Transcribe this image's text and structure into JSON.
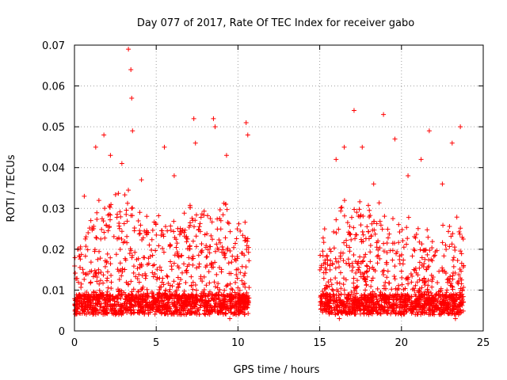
{
  "chart_data": {
    "type": "scatter",
    "title": "Day 077 of 2017, Rate Of TEC Index for receiver gabo",
    "xlabel": "GPS time / hours",
    "ylabel": "ROTI / TECUs",
    "xlim": [
      0,
      25
    ],
    "ylim": [
      0,
      0.07
    ],
    "xticks": [
      "0",
      "5",
      "10",
      "15",
      "20",
      "25"
    ],
    "yticks": [
      "0",
      "0.01",
      "0.02",
      "0.03",
      "0.04",
      "0.05",
      "0.06",
      "0.07"
    ],
    "grid": true,
    "marker": "plus",
    "color": "#ff0000",
    "x_segments": [
      [
        0.0,
        10.7
      ],
      [
        15.0,
        23.8
      ]
    ],
    "x": [
      0.2,
      0.6,
      1.3,
      1.8,
      2.2,
      2.9,
      3.3,
      3.45,
      3.5,
      3.55,
      4.1,
      5.5,
      6.1,
      7.3,
      7.4,
      8.5,
      8.6,
      9.3,
      10.5,
      10.6,
      15.3,
      16.0,
      16.5,
      17.1,
      17.6,
      18.3,
      18.9,
      19.6,
      20.4,
      21.2,
      21.7,
      22.5,
      23.1,
      23.6,
      0.5,
      2.5,
      4.5,
      6.5,
      8.0,
      9.5,
      16.2,
      18.0,
      20.0,
      22.0,
      23.3
    ],
    "y": [
      0.02,
      0.033,
      0.045,
      0.048,
      0.043,
      0.041,
      0.069,
      0.064,
      0.057,
      0.049,
      0.037,
      0.045,
      0.038,
      0.052,
      0.046,
      0.052,
      0.05,
      0.043,
      0.051,
      0.048,
      0.025,
      0.042,
      0.045,
      0.054,
      0.045,
      0.036,
      0.053,
      0.047,
      0.038,
      0.042,
      0.049,
      0.036,
      0.046,
      0.05,
      0.005,
      0.004,
      0.005,
      0.004,
      0.004,
      0.003,
      0.003,
      0.004,
      0.004,
      0.004,
      0.003
    ]
  }
}
